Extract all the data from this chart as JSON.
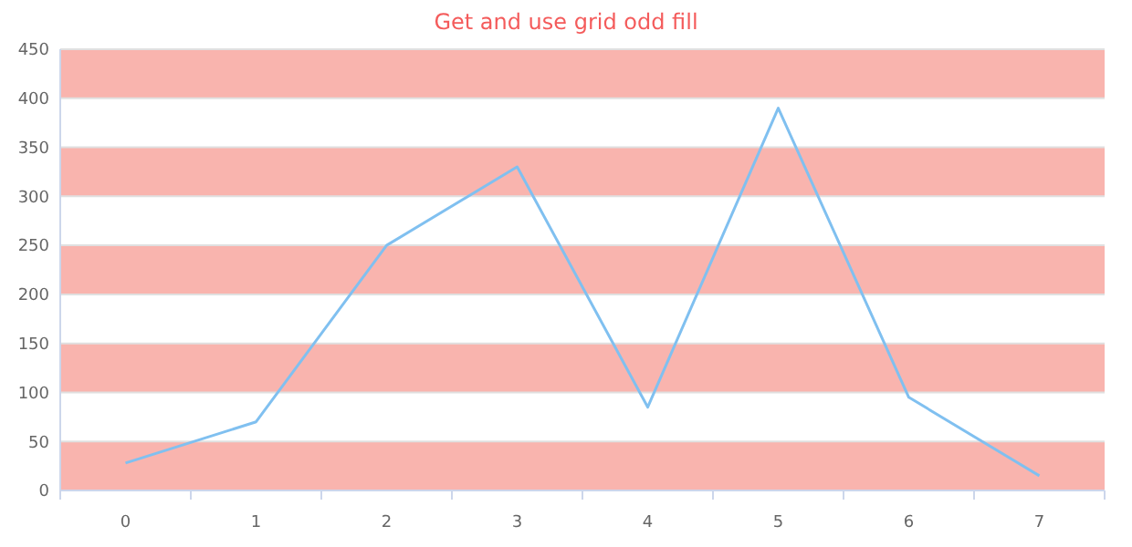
{
  "chart_data": {
    "type": "line",
    "title": "Get and use grid odd fill",
    "categories": [
      "0",
      "1",
      "2",
      "3",
      "4",
      "5",
      "6",
      "7"
    ],
    "series": [
      {
        "color": "#80c0f0",
        "values": [
          28,
          70,
          250,
          330,
          85,
          390,
          95,
          15
        ]
      }
    ],
    "ylim": [
      0,
      450
    ],
    "yticks": [
      0,
      50,
      100,
      150,
      200,
      250,
      300,
      350,
      400,
      450
    ],
    "grid": "y",
    "marker": "none",
    "bands": [
      {
        "axis": "y",
        "from": 0,
        "to": 50,
        "color": "#f9b4ae"
      },
      {
        "axis": "y",
        "from": 100,
        "to": 150,
        "color": "#f9b4ae"
      },
      {
        "axis": "y",
        "from": 200,
        "to": 250,
        "color": "#f9b4ae"
      },
      {
        "axis": "y",
        "from": 300,
        "to": 350,
        "color": "#f9b4ae"
      },
      {
        "axis": "y",
        "from": 400,
        "to": 450,
        "color": "#f9b4ae"
      }
    ]
  }
}
